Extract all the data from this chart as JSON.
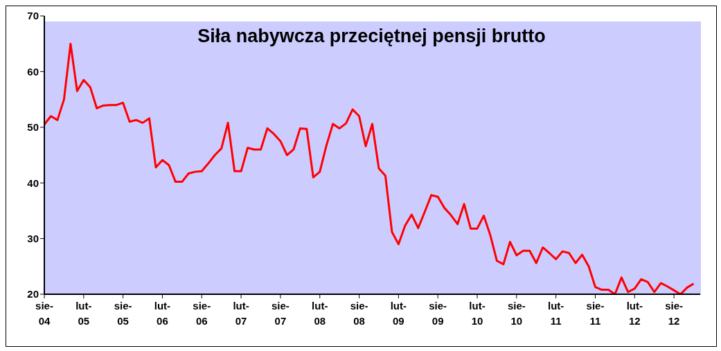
{
  "chart_data": {
    "type": "line",
    "title": "Siła nabywcza przeciętnej pensji brutto",
    "x": [
      "2004-08",
      "2004-09",
      "2004-10",
      "2004-11",
      "2004-12",
      "2005-01",
      "2005-02",
      "2005-03",
      "2005-04",
      "2005-05",
      "2005-06",
      "2005-07",
      "2005-08",
      "2005-09",
      "2005-10",
      "2005-11",
      "2005-12",
      "2006-01",
      "2006-02",
      "2006-03",
      "2006-04",
      "2006-05",
      "2006-06",
      "2006-07",
      "2006-08",
      "2006-09",
      "2006-10",
      "2006-11",
      "2006-12",
      "2007-01",
      "2007-02",
      "2007-03",
      "2007-04",
      "2007-05",
      "2007-06",
      "2007-07",
      "2007-08",
      "2007-09",
      "2007-10",
      "2007-11",
      "2007-12",
      "2008-01",
      "2008-02",
      "2008-03",
      "2008-04",
      "2008-05",
      "2008-06",
      "2008-07",
      "2008-08",
      "2008-09",
      "2008-10",
      "2008-11",
      "2008-12",
      "2009-01",
      "2009-02",
      "2009-03",
      "2009-04",
      "2009-05",
      "2009-06",
      "2009-07",
      "2009-08",
      "2009-09",
      "2009-10",
      "2009-11",
      "2009-12",
      "2010-01",
      "2010-02",
      "2010-03",
      "2010-04",
      "2010-05",
      "2010-06",
      "2010-07",
      "2010-08",
      "2010-09",
      "2010-10",
      "2010-11",
      "2010-12",
      "2011-01",
      "2011-02",
      "2011-03",
      "2011-04",
      "2011-05",
      "2011-06",
      "2011-07",
      "2011-08",
      "2011-09",
      "2011-10",
      "2011-11",
      "2011-12",
      "2012-01",
      "2012-02",
      "2012-03",
      "2012-04",
      "2012-05",
      "2012-06",
      "2012-07",
      "2012-08",
      "2012-09",
      "2012-10",
      "2012-11"
    ],
    "series": [
      {
        "color": "#ff0000",
        "values": [
          50.5,
          52,
          51.3,
          55,
          65,
          56.5,
          58.5,
          57.2,
          53.4,
          53.9,
          54,
          54,
          54.4,
          51,
          51.3,
          50.8,
          51.6,
          42.8,
          44.1,
          43.2,
          40.2,
          40.2,
          41.7,
          42,
          42.1,
          43.5,
          45,
          46.2,
          50.8,
          42.1,
          42.1,
          46.3,
          46,
          46,
          49.8,
          48.8,
          47.5,
          45,
          46,
          49.8,
          49.7,
          41,
          42,
          46.7,
          50.6,
          49.8,
          50.7,
          53.2,
          52,
          46.6,
          50.6,
          42.6,
          41.3,
          31.2,
          29,
          32.3,
          34.3,
          31.9,
          34.8,
          37.8,
          37.5,
          35.5,
          34.2,
          32.6,
          36.2,
          31.8,
          31.8,
          34.1,
          30.6,
          26,
          25.4,
          29.4,
          27,
          27.8,
          27.8,
          25.6,
          28.4,
          27.4,
          26.3,
          27.7,
          27.4,
          25.6,
          27.1,
          25,
          21.3,
          20.8,
          20.8,
          20,
          23,
          20.4,
          21,
          22.7,
          22.2,
          20.4,
          22,
          21.4,
          20.7,
          20,
          21.2,
          21.9
        ]
      }
    ],
    "xlim": [
      "2004-08",
      "2012-12"
    ],
    "xticks": [
      {
        "value": "2004-08",
        "label": "sie-04"
      },
      {
        "value": "2005-02",
        "label": "lut-05"
      },
      {
        "value": "2005-08",
        "label": "sie-05"
      },
      {
        "value": "2006-02",
        "label": "lut-06"
      },
      {
        "value": "2006-08",
        "label": "sie-06"
      },
      {
        "value": "2007-02",
        "label": "lut-07"
      },
      {
        "value": "2007-08",
        "label": "sie-07"
      },
      {
        "value": "2008-02",
        "label": "lut-08"
      },
      {
        "value": "2008-08",
        "label": "sie-08"
      },
      {
        "value": "2009-02",
        "label": "lut-09"
      },
      {
        "value": "2009-08",
        "label": "sie-09"
      },
      {
        "value": "2010-02",
        "label": "lut-10"
      },
      {
        "value": "2010-08",
        "label": "sie-10"
      },
      {
        "value": "2011-02",
        "label": "lut-11"
      },
      {
        "value": "2011-08",
        "label": "sie-11"
      },
      {
        "value": "2012-02",
        "label": "lut-12"
      },
      {
        "value": "2012-08",
        "label": "sie-12"
      }
    ],
    "ylim": [
      20,
      70
    ],
    "yticks": [
      20,
      30,
      40,
      50,
      60,
      70
    ],
    "grid": false,
    "legend": false,
    "marker": "none",
    "line_style": "solid"
  }
}
